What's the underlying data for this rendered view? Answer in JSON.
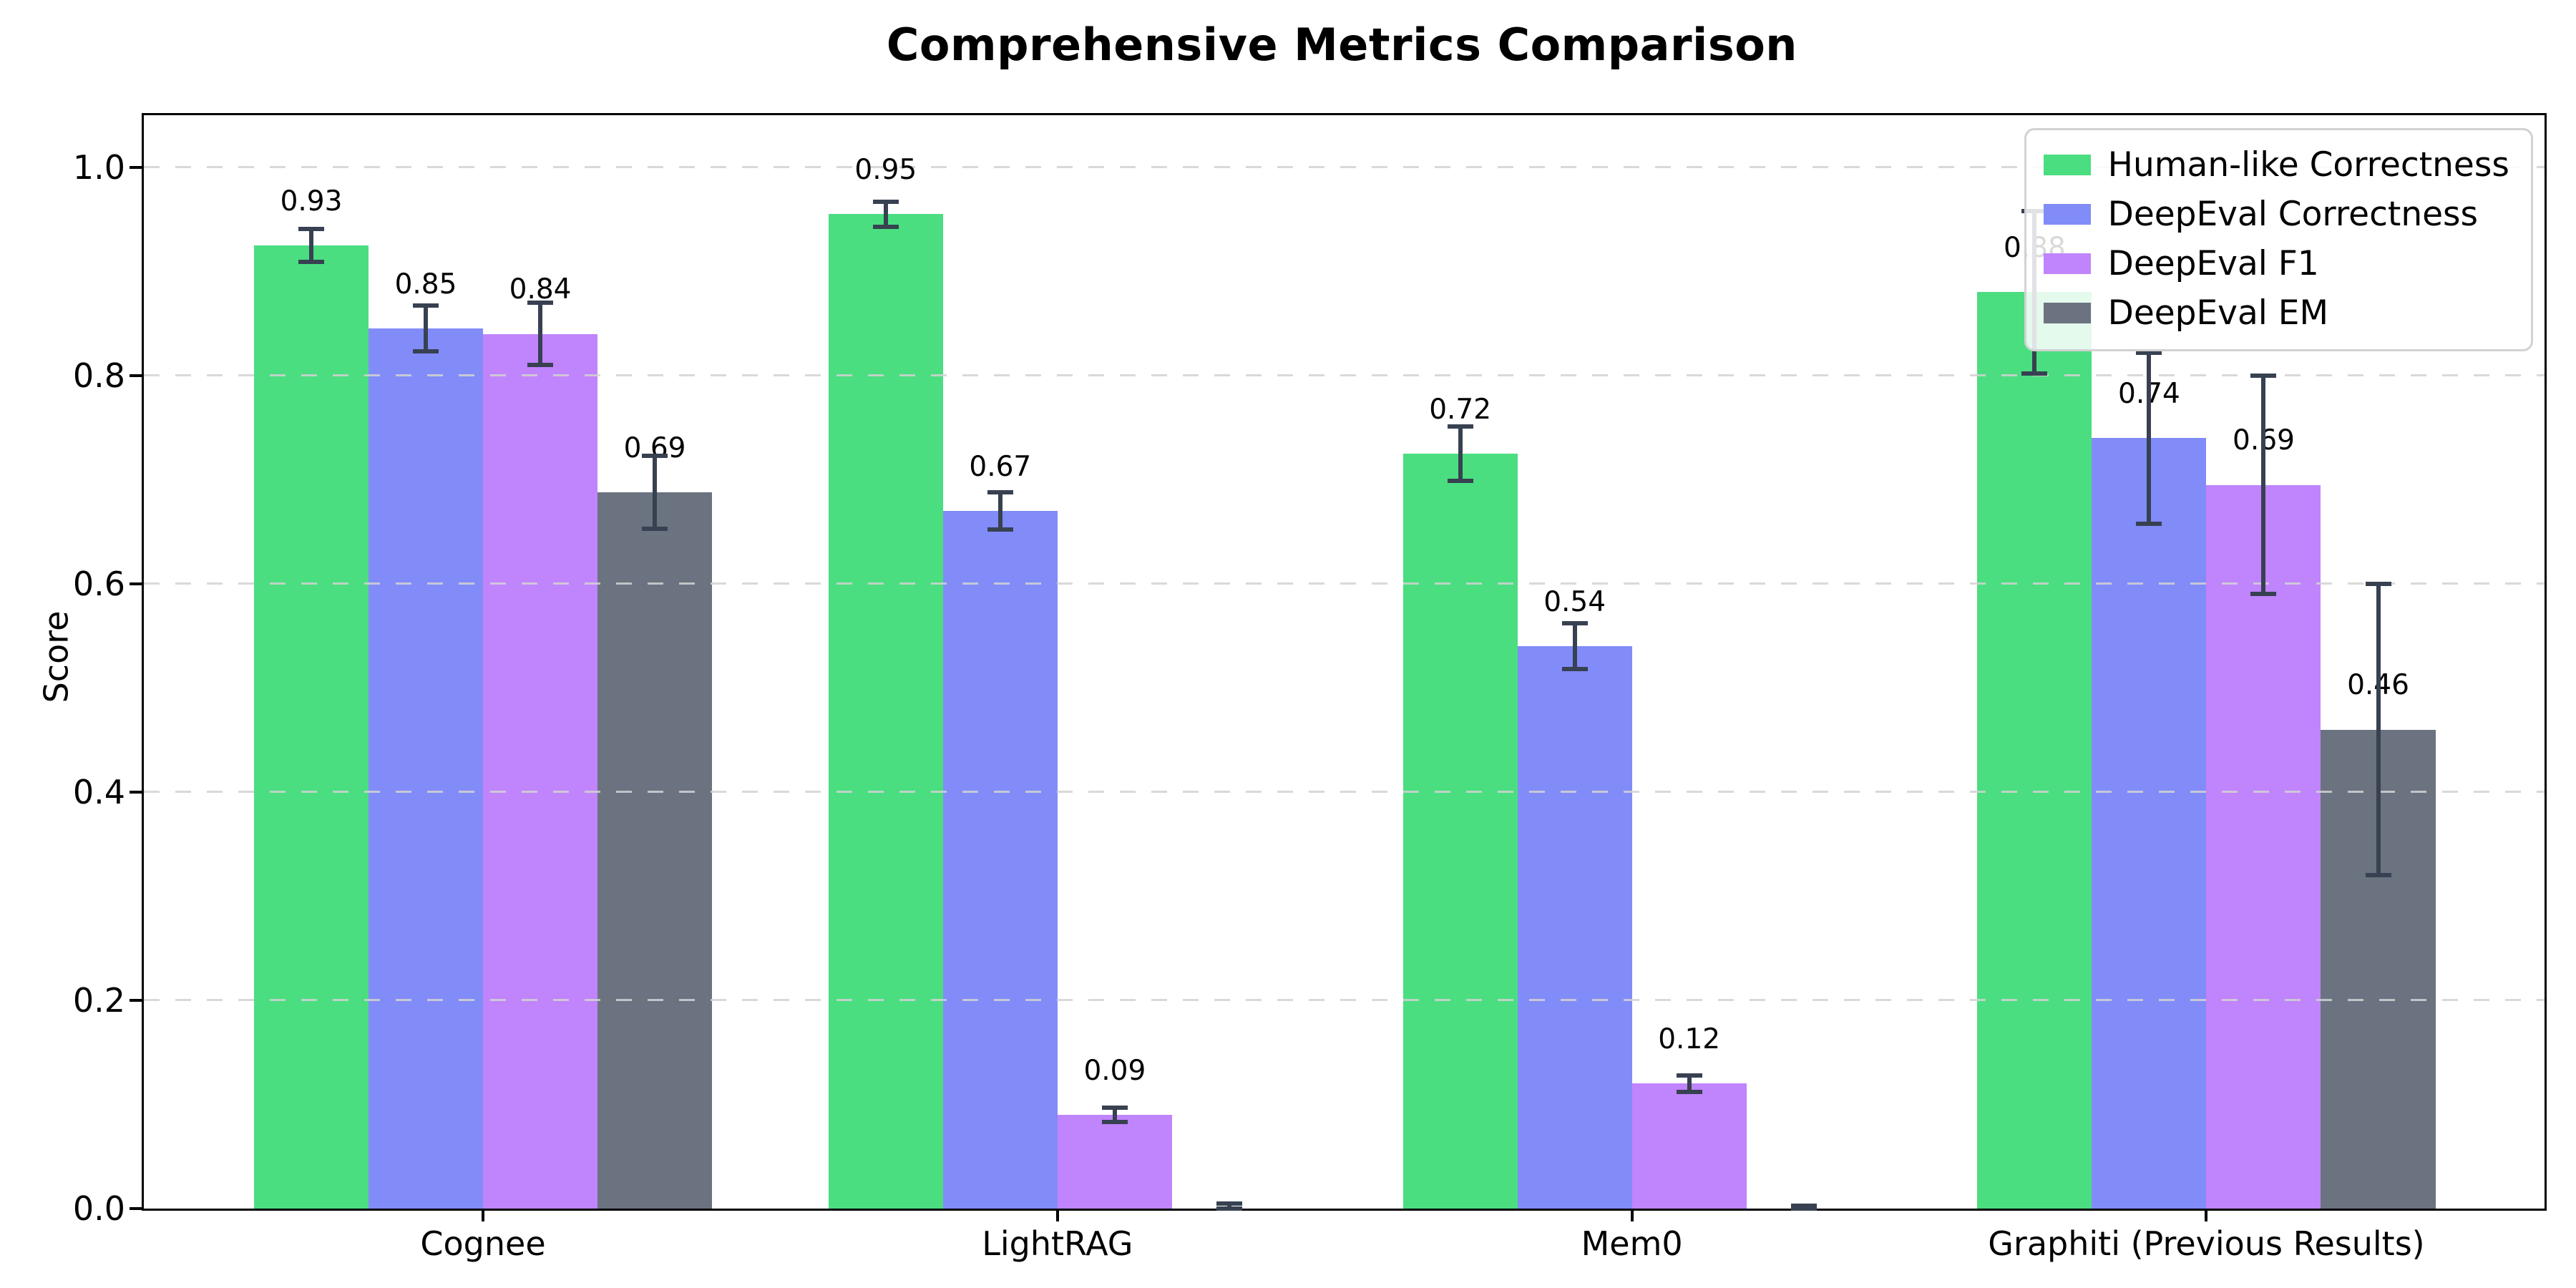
{
  "figure": {
    "title": "Comprehensive Metrics Comparison",
    "ylabel": "Score"
  },
  "chart_data": {
    "type": "bar",
    "title": "Comprehensive Metrics Comparison",
    "xlabel": "",
    "ylabel": "Score",
    "ylim": [
      0,
      1.05
    ],
    "yticks": [
      0.0,
      0.2,
      0.4,
      0.6,
      0.8,
      1.0
    ],
    "ytick_labels": [
      "0.0",
      "0.2",
      "0.4",
      "0.6",
      "0.8",
      "1.0"
    ],
    "grid": "horizontal-dashed",
    "legend_position": "upper-right",
    "error_bar_color": "#374151",
    "categories": [
      "Cognee",
      "LightRAG",
      "Mem0",
      "Graphiti (Previous Results)"
    ],
    "series": [
      {
        "name": "Human-like Correctness",
        "color": "#4ade80",
        "values": [
          0.925,
          0.955,
          0.725,
          0.88
        ],
        "labels": [
          "0.93",
          "0.95",
          "0.72",
          "0.88"
        ],
        "errors": [
          0.016,
          0.012,
          0.026,
          0.078
        ]
      },
      {
        "name": "DeepEval Correctness",
        "color": "#818cf8",
        "values": [
          0.845,
          0.67,
          0.54,
          0.74
        ],
        "labels": [
          "0.85",
          "0.67",
          "0.54",
          "0.74"
        ],
        "errors": [
          0.022,
          0.018,
          0.022,
          0.082
        ]
      },
      {
        "name": "DeepEval F1",
        "color": "#c084fc",
        "values": [
          0.84,
          0.09,
          0.12,
          0.695
        ],
        "labels": [
          "0.84",
          "0.09",
          "0.12",
          "0.69"
        ],
        "errors": [
          0.03,
          0.007,
          0.008,
          0.105
        ]
      },
      {
        "name": "DeepEval EM",
        "color": "#6b7280",
        "values": [
          0.688,
          0.0,
          0.0,
          0.46
        ],
        "labels": [
          "0.69",
          "",
          "",
          "0.46"
        ],
        "errors": [
          0.035,
          0.005,
          0.003,
          0.14
        ]
      }
    ]
  }
}
